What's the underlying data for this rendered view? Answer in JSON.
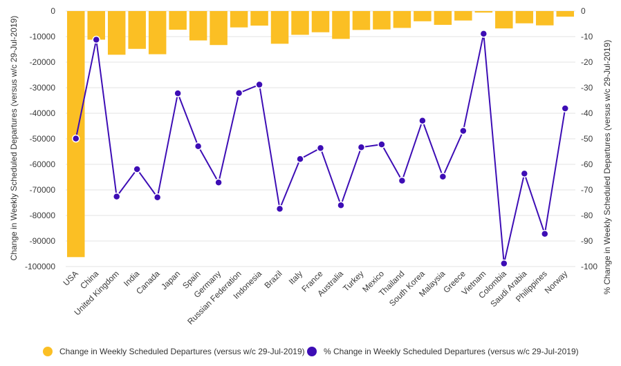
{
  "chart_data": {
    "type": "bar",
    "categories": [
      "USA",
      "China",
      "United Kingdom",
      "India",
      "Canada",
      "Japan",
      "Spain",
      "Germany",
      "Russian Federation",
      "Indonesia",
      "Brazil",
      "Italy",
      "France",
      "Australia",
      "Turkey",
      "Mexico",
      "Thailand",
      "South Korea",
      "Malaysia",
      "Greece",
      "Vietnam",
      "Colombia",
      "Saudi Arabia",
      "Philippines",
      "Norway"
    ],
    "series": [
      {
        "name": "Change in Weekly Scheduled Departures (versus w/c 29-Jul-2019)",
        "type": "bar",
        "axis": "left",
        "color": "#FBBF24",
        "values": [
          -96300,
          -11200,
          -17100,
          -14800,
          -16900,
          -7300,
          -11500,
          -13300,
          -6400,
          -5700,
          -12800,
          -9300,
          -8300,
          -10900,
          -7400,
          -7200,
          -6600,
          -4000,
          -5400,
          -3700,
          -600,
          -6800,
          -4800,
          -5600,
          -2200
        ]
      },
      {
        "name": "% Change in Weekly Scheduled Departures (versus w/c 29-Jul-2019)",
        "type": "line",
        "axis": "right",
        "color": "#3D0DB5",
        "values": [
          -49.9,
          -11.2,
          -72.6,
          -61.9,
          -72.9,
          -32.2,
          -52.9,
          -67.1,
          -32.1,
          -28.8,
          -77.4,
          -57.9,
          -53.6,
          -76.0,
          -53.3,
          -52.2,
          -66.4,
          -42.9,
          -64.8,
          -46.9,
          -8.9,
          -98.8,
          -63.6,
          -87.2,
          -38.1
        ]
      }
    ],
    "y_left": {
      "label": "Change in Weekly Scheduled Departures (versus w/c 29-Jul-2019)",
      "range": [
        -100000,
        0
      ],
      "ticks": [
        0,
        -10000,
        -20000,
        -30000,
        -40000,
        -50000,
        -60000,
        -70000,
        -80000,
        -90000,
        -100000
      ]
    },
    "y_right": {
      "label": "% Change in Weekly Scheduled Departures (versus w/c 29-Jul-2019)",
      "range": [
        -100,
        0
      ],
      "ticks": [
        0,
        -10,
        -20,
        -30,
        -40,
        -50,
        -60,
        -70,
        -80,
        -90,
        -100
      ]
    },
    "grid": true,
    "legend_position": "bottom"
  }
}
